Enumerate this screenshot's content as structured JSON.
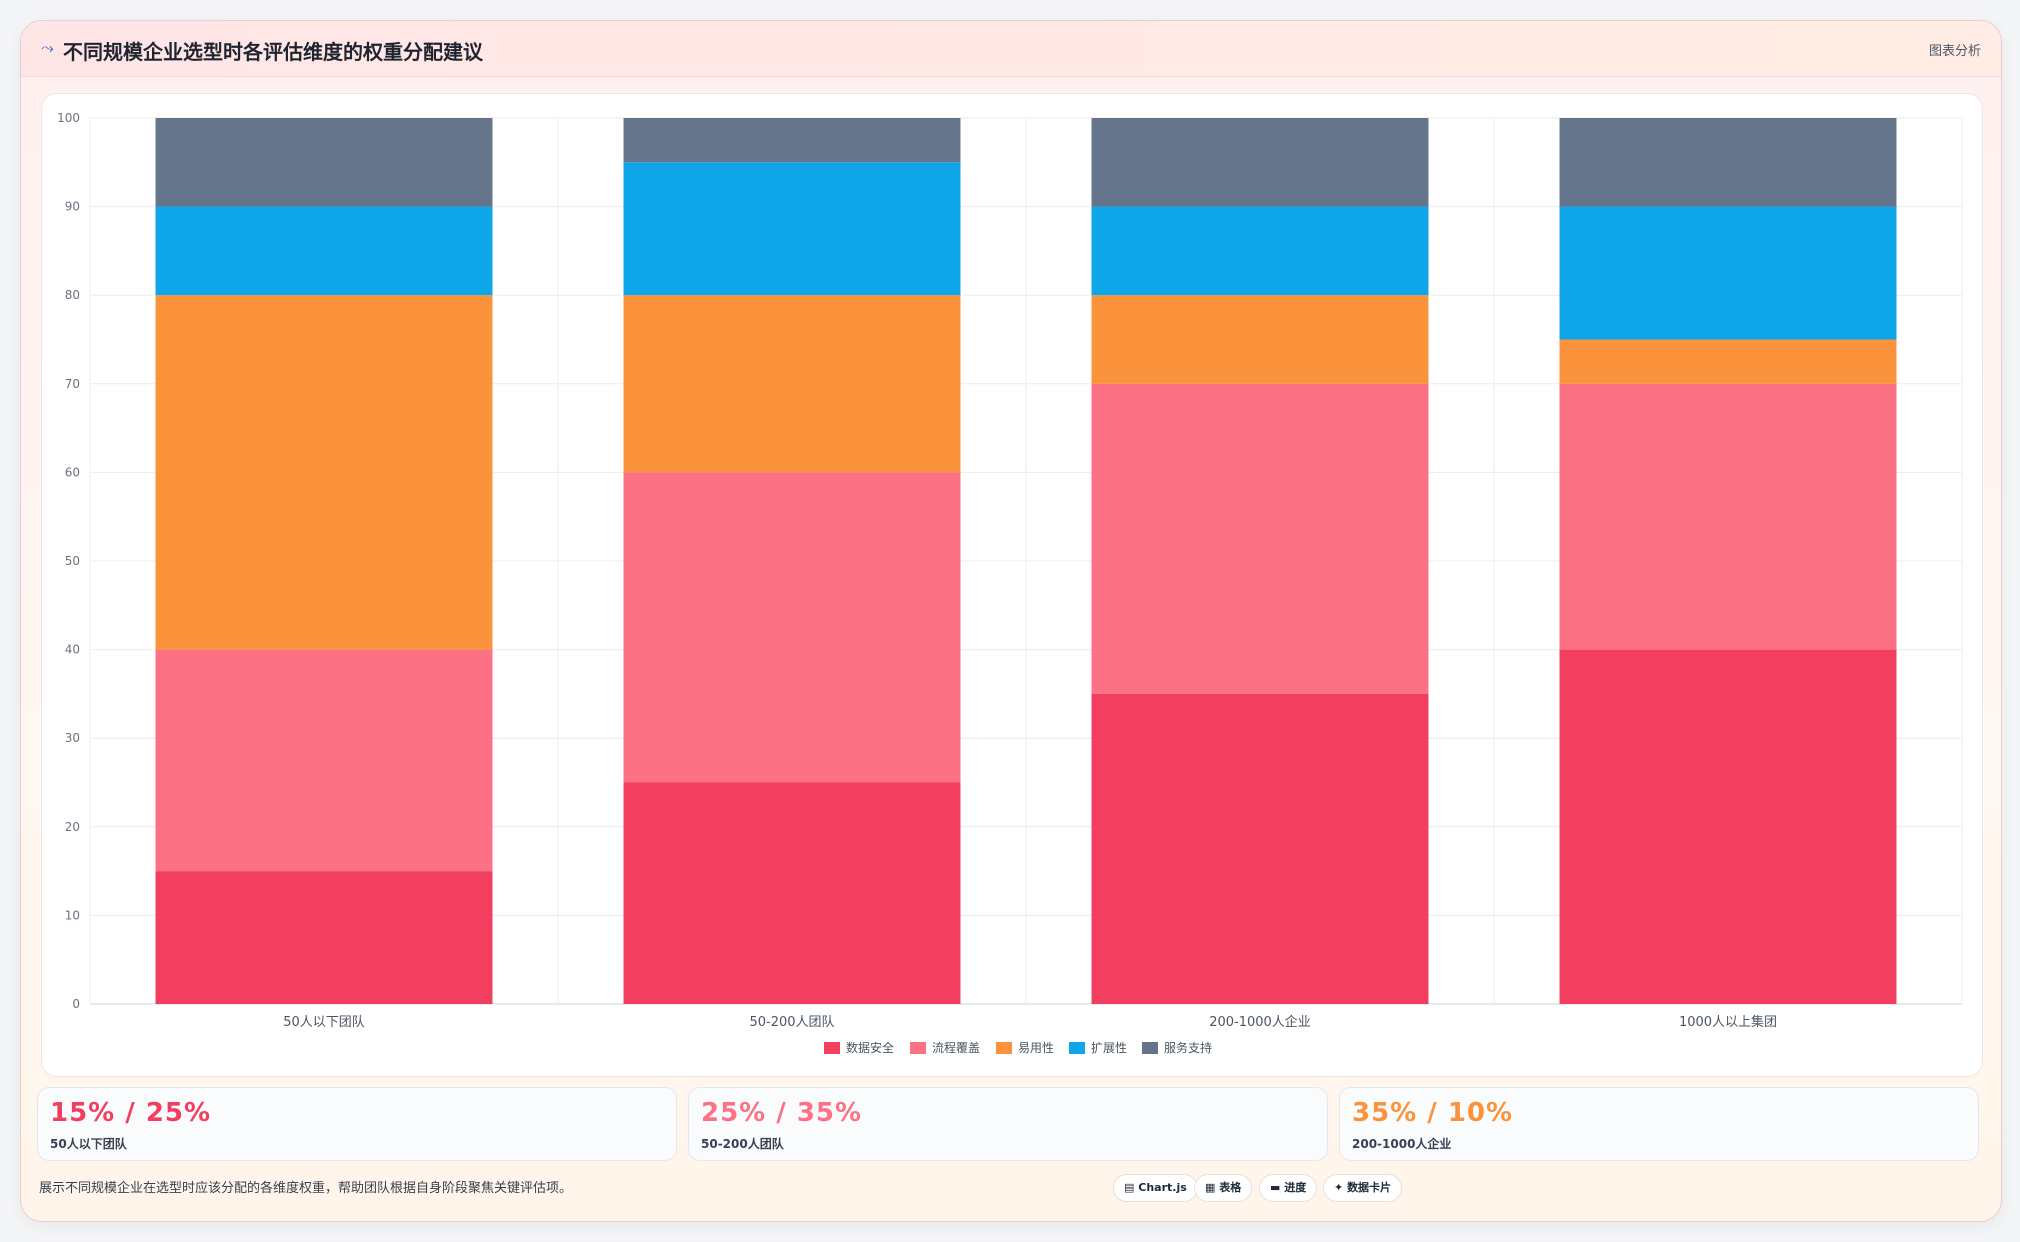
{
  "header": {
    "icon": "chart-line-icon",
    "title": "不同规模企业选型时各评估维度的权重分配建议",
    "badge": "图表分析"
  },
  "chart_data": {
    "type": "bar",
    "stacked": true,
    "categories": [
      "50人以下团队",
      "50-200人团队",
      "200-1000人企业",
      "1000人以上集团"
    ],
    "series": [
      {
        "name": "数据安全",
        "color": "#f23f5f",
        "values": [
          15,
          25,
          35,
          40
        ]
      },
      {
        "name": "流程覆盖",
        "color": "#fd7185",
        "values": [
          25,
          35,
          35,
          30
        ]
      },
      {
        "name": "易用性",
        "color": "#fb933c",
        "values": [
          40,
          20,
          10,
          5
        ]
      },
      {
        "name": "扩展性",
        "color": "#0fa5e9",
        "values": [
          10,
          15,
          10,
          15
        ]
      },
      {
        "name": "服务支持",
        "color": "#64748b",
        "values": [
          10,
          5,
          10,
          10
        ]
      }
    ],
    "ylim": [
      0,
      100
    ],
    "yticks": [
      0,
      10,
      20,
      30,
      40,
      50,
      60,
      70,
      80,
      90,
      100
    ],
    "grid": true,
    "legend": "bottom"
  },
  "stats": [
    {
      "value": "15% / 25%",
      "label": "50人以下团队",
      "color": "#f23f5f"
    },
    {
      "value": "25% / 35%",
      "label": "50-200人团队",
      "color": "#fd7185"
    },
    {
      "value": "35% / 10%",
      "label": "200-1000人企业",
      "color": "#fb933c"
    }
  ],
  "footer": {
    "note": "展示不同规模企业在选型时应该分配的各维度权重，帮助团队根据自身阶段聚焦关键评估项。",
    "tags": [
      {
        "icon": "chart-icon",
        "glyph": "▤",
        "label": "Chart.js"
      },
      {
        "icon": "table-icon",
        "glyph": "▦",
        "label": "表格"
      },
      {
        "icon": "progress-icon",
        "glyph": "▬",
        "label": "进度"
      },
      {
        "icon": "sparkle-icon",
        "glyph": "✦",
        "label": "数据卡片"
      }
    ]
  }
}
